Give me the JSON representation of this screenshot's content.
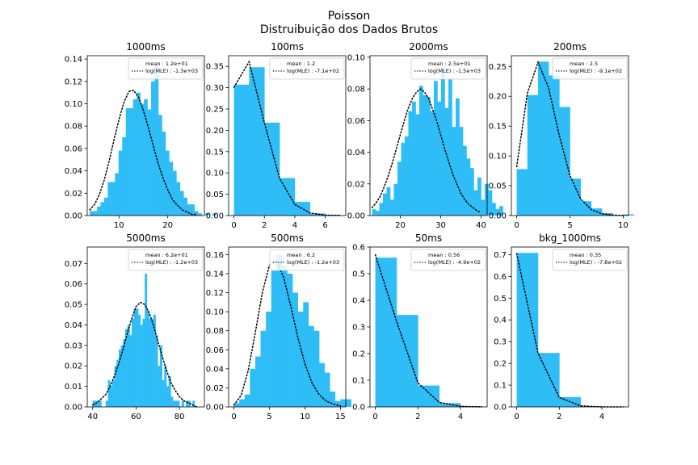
{
  "figure": {
    "suptitle_line1": "Poisson",
    "suptitle_line2": "Distruibuição dos Dados Brutos",
    "hist_color": "#2ebdf7",
    "fit_line_color": "#000000",
    "fit_line_style": "dotted"
  },
  "chart_data": [
    {
      "type": "bar",
      "title": "1000ms",
      "legend": {
        "placement": "top-right",
        "entries": [
          "mean : 1.2e+01",
          "log(MLE) : -1.3e+03"
        ]
      },
      "xlim": [
        3.5,
        27.5
      ],
      "ylim": [
        0,
        0.143
      ],
      "xticks": [
        10,
        20
      ],
      "yticks": [
        0.0,
        0.02,
        0.04,
        0.06,
        0.08,
        0.1,
        0.12,
        0.14
      ],
      "ytick_labels": [
        "0.00",
        "0.02",
        "0.04",
        "0.06",
        "0.08",
        "0.10",
        "0.12",
        "0.14"
      ],
      "bins": {
        "x0": 4,
        "width": 0.74,
        "values": [
          0.004,
          0.004,
          0.008,
          0.012,
          0.016,
          0.03,
          0.03,
          0.038,
          0.058,
          0.07,
          0.096,
          0.096,
          0.104,
          0.11,
          0.1,
          0.104,
          0.095,
          0.12,
          0.135,
          0.09,
          0.075,
          0.058,
          0.048,
          0.04,
          0.03,
          0.022,
          0.016,
          0.01,
          0.01,
          0.004,
          0.002,
          0.0,
          0.002,
          0.0,
          0.002
        ]
      },
      "fit": {
        "x": [
          4,
          5,
          6,
          7,
          8,
          9,
          10,
          11,
          12,
          13,
          14,
          15,
          16,
          17,
          18,
          19,
          20,
          21,
          22,
          23,
          24,
          25,
          26
        ],
        "y": [
          0.005,
          0.01,
          0.019,
          0.032,
          0.049,
          0.068,
          0.086,
          0.101,
          0.111,
          0.112,
          0.106,
          0.094,
          0.079,
          0.063,
          0.047,
          0.034,
          0.023,
          0.014,
          0.009,
          0.005,
          0.003,
          0.001,
          0.001
        ]
      }
    },
    {
      "type": "bar",
      "title": "100ms",
      "legend": {
        "placement": "top-right",
        "entries": [
          "mean : 1.2",
          "log(MLE) : -7.1e+02"
        ]
      },
      "xlim": [
        -0.35,
        7.35
      ],
      "ylim": [
        0,
        0.375
      ],
      "xticks": [
        0,
        2,
        4,
        6
      ],
      "yticks": [
        0.0,
        0.05,
        0.1,
        0.15,
        0.2,
        0.25,
        0.3,
        0.35
      ],
      "ytick_labels": [
        "0.00",
        "0.05",
        "0.10",
        "0.15",
        "0.20",
        "0.25",
        "0.30",
        "0.35"
      ],
      "bins": {
        "x0": 0,
        "width": 1,
        "values": [
          0.307,
          0.348,
          0.218,
          0.088,
          0.032,
          0.005,
          0.002
        ]
      },
      "fit": {
        "x": [
          0,
          1,
          2,
          3,
          4,
          5,
          6,
          7
        ],
        "y": [
          0.301,
          0.361,
          0.217,
          0.087,
          0.026,
          0.006,
          0.001,
          0.0
        ]
      }
    },
    {
      "type": "bar",
      "title": "2000ms",
      "legend": {
        "placement": "top-right",
        "entries": [
          "mean : 2.5e+01",
          "log(MLE) : -1.5e+03"
        ]
      },
      "xlim": [
        12.5,
        41.5
      ],
      "ylim": [
        0,
        0.101
      ],
      "xticks": [
        20,
        30,
        40
      ],
      "yticks": [
        0.0,
        0.02,
        0.04,
        0.06,
        0.08,
        0.1
      ],
      "ytick_labels": [
        "0.00",
        "0.02",
        "0.04",
        "0.06",
        "0.08",
        "0.10"
      ],
      "bins": {
        "x0": 13,
        "width": 0.9,
        "values": [
          0.004,
          0.003,
          0.008,
          0.014,
          0.018,
          0.01,
          0.02,
          0.034,
          0.046,
          0.05,
          0.066,
          0.072,
          0.064,
          0.082,
          0.076,
          0.075,
          0.066,
          0.085,
          0.072,
          0.094,
          0.068,
          0.086,
          0.056,
          0.074,
          0.056,
          0.044,
          0.036,
          0.03,
          0.016,
          0.024,
          0.01,
          0.02,
          0.016,
          0.008,
          0.004,
          0.006
        ]
      },
      "fit": {
        "x": [
          13,
          14,
          15,
          16,
          17,
          18,
          19,
          20,
          21,
          22,
          23,
          24,
          25,
          26,
          27,
          28,
          29,
          30,
          31,
          32,
          33,
          34,
          35,
          36,
          37,
          38,
          39,
          40
        ],
        "y": [
          0.005,
          0.008,
          0.012,
          0.018,
          0.025,
          0.033,
          0.042,
          0.051,
          0.06,
          0.068,
          0.074,
          0.078,
          0.08,
          0.078,
          0.074,
          0.067,
          0.06,
          0.051,
          0.042,
          0.034,
          0.026,
          0.02,
          0.014,
          0.01,
          0.007,
          0.005,
          0.003,
          0.002
        ]
      }
    },
    {
      "type": "bar",
      "title": "200ms",
      "legend": {
        "placement": "top-right",
        "entries": [
          "mean : 2.5",
          "log(MLE) : -9.1e+02"
        ]
      },
      "xlim": [
        -0.5,
        10.5
      ],
      "ylim": [
        0,
        0.268
      ],
      "xticks": [
        0,
        5,
        10
      ],
      "yticks": [
        0.0,
        0.05,
        0.1,
        0.15,
        0.2,
        0.25
      ],
      "ytick_labels": [
        "0.00",
        "0.05",
        "0.10",
        "0.15",
        "0.20",
        "0.25"
      ],
      "bins": {
        "x0": 0,
        "width": 1,
        "values": [
          0.078,
          0.202,
          0.258,
          0.235,
          0.182,
          0.062,
          0.024,
          0.012,
          0.004,
          0.0,
          0.002
        ]
      },
      "fit": {
        "x": [
          0,
          1,
          2,
          3,
          4,
          5,
          6,
          7,
          8,
          9,
          10
        ],
        "y": [
          0.082,
          0.205,
          0.257,
          0.214,
          0.134,
          0.067,
          0.028,
          0.01,
          0.003,
          0.001,
          0.0
        ]
      }
    },
    {
      "type": "bar",
      "title": "5000ms",
      "legend": {
        "placement": "top-right",
        "entries": [
          "mean : 6.2e+01",
          "log(MLE) : -1.2e+03"
        ]
      },
      "xlim": [
        37.5,
        91.5
      ],
      "ylim": [
        0,
        0.078
      ],
      "xticks": [
        40,
        60,
        80
      ],
      "yticks": [
        0.0,
        0.01,
        0.02,
        0.03,
        0.04,
        0.05,
        0.06,
        0.07
      ],
      "ytick_labels": [
        "0.00",
        "0.01",
        "0.02",
        "0.03",
        "0.04",
        "0.05",
        "0.06",
        "0.07"
      ],
      "bins": {
        "x0": 40,
        "width": 1,
        "values": [
          0.003,
          0.003,
          0.003,
          0.003,
          0.0,
          0.0,
          0.003,
          0.013,
          0.01,
          0.013,
          0.02,
          0.023,
          0.028,
          0.03,
          0.033,
          0.038,
          0.04,
          0.035,
          0.043,
          0.048,
          0.048,
          0.045,
          0.04,
          0.043,
          0.065,
          0.047,
          0.043,
          0.043,
          0.045,
          0.035,
          0.02,
          0.03,
          0.013,
          0.02,
          0.01,
          0.015,
          0.005,
          0.003,
          0.003,
          0.003,
          0.0,
          0.003,
          0.0,
          0.003,
          0.003,
          0.0,
          0.003
        ]
      },
      "fit": {
        "x": [
          40,
          42,
          44,
          46,
          48,
          50,
          52,
          54,
          56,
          58,
          60,
          62,
          64,
          66,
          68,
          70,
          72,
          74,
          76,
          78,
          80,
          82,
          84,
          86,
          88
        ],
        "y": [
          0.001,
          0.002,
          0.004,
          0.006,
          0.01,
          0.015,
          0.021,
          0.028,
          0.036,
          0.043,
          0.049,
          0.051,
          0.05,
          0.046,
          0.04,
          0.032,
          0.025,
          0.018,
          0.012,
          0.008,
          0.005,
          0.003,
          0.002,
          0.001,
          0.0
        ]
      }
    },
    {
      "type": "bar",
      "title": "500ms",
      "legend": {
        "placement": "top-right",
        "entries": [
          "mean : 6.2",
          "log(MLE) : -1.2e+03"
        ]
      },
      "xlim": [
        -0.75,
        15.75
      ],
      "ylim": [
        0,
        0.168
      ],
      "xticks": [
        0,
        5,
        10,
        15
      ],
      "yticks": [
        0.0,
        0.02,
        0.04,
        0.06,
        0.08,
        0.1,
        0.12,
        0.14,
        0.16
      ],
      "ytick_labels": [
        "0.00",
        "0.02",
        "0.04",
        "0.06",
        "0.08",
        "0.10",
        "0.12",
        "0.14",
        "0.16"
      ],
      "bins": {
        "x0": 0,
        "width": 0.75,
        "values": [
          0.004,
          0.008,
          0.013,
          0.04,
          0.053,
          0.08,
          0.1,
          0.143,
          0.16,
          0.148,
          0.14,
          0.12,
          0.1,
          0.11,
          0.085,
          0.08,
          0.046,
          0.036,
          0.016,
          0.006,
          0.008,
          0.008
        ]
      },
      "fit": {
        "x": [
          0,
          1,
          2,
          3,
          4,
          5,
          6,
          7,
          8,
          9,
          10,
          11,
          12,
          13,
          14,
          15
        ],
        "y": [
          0.002,
          0.012,
          0.038,
          0.078,
          0.12,
          0.149,
          0.154,
          0.136,
          0.106,
          0.073,
          0.045,
          0.025,
          0.013,
          0.006,
          0.003,
          0.001
        ]
      }
    },
    {
      "type": "bar",
      "title": "50ms",
      "legend": {
        "placement": "top-right",
        "entries": [
          "mean : 0.56",
          "log(MLE) : -4.9e+02"
        ]
      },
      "xlim": [
        -0.25,
        5.25
      ],
      "ylim": [
        0,
        0.6
      ],
      "xticks": [
        0,
        2,
        4
      ],
      "yticks": [
        0.0,
        0.1,
        0.2,
        0.3,
        0.4,
        0.5,
        0.6
      ],
      "ytick_labels": [
        "0.0",
        "0.1",
        "0.2",
        "0.3",
        "0.4",
        "0.5",
        "0.6"
      ],
      "bins": {
        "x0": 0,
        "width": 1,
        "values": [
          0.56,
          0.345,
          0.08,
          0.014,
          0.003
        ]
      },
      "fit": {
        "x": [
          0,
          1,
          2,
          3,
          4,
          5
        ],
        "y": [
          0.571,
          0.32,
          0.09,
          0.017,
          0.002,
          0.0
        ]
      }
    },
    {
      "type": "bar",
      "title": "bkg_1000ms",
      "legend": {
        "placement": "top-right",
        "entries": [
          "mean : 0.35",
          "log(MLE) : -7.8e+02"
        ]
      },
      "xlim": [
        -0.25,
        5.25
      ],
      "ylim": [
        0,
        0.735
      ],
      "xticks": [
        0,
        2,
        4
      ],
      "yticks": [
        0.0,
        0.1,
        0.2,
        0.3,
        0.4,
        0.5,
        0.6,
        0.7
      ],
      "ytick_labels": [
        "0.0",
        "0.1",
        "0.2",
        "0.3",
        "0.4",
        "0.5",
        "0.6",
        "0.7"
      ],
      "bins": {
        "x0": 0,
        "width": 1,
        "values": [
          0.708,
          0.248,
          0.045,
          0.003
        ]
      },
      "fit": {
        "x": [
          0,
          1,
          2,
          3,
          4,
          5
        ],
        "y": [
          0.705,
          0.247,
          0.043,
          0.005,
          0.0,
          0.0
        ]
      }
    }
  ]
}
